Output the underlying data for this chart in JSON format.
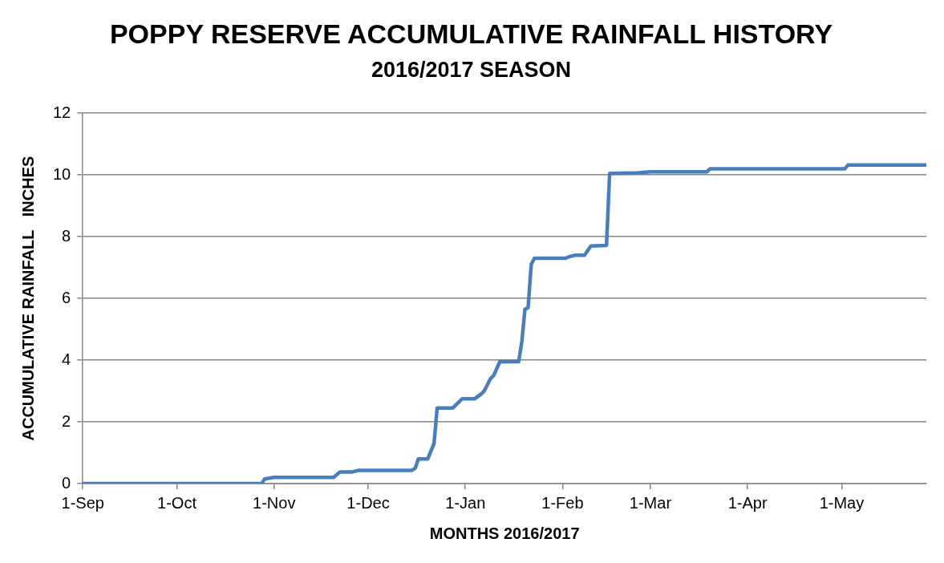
{
  "chart_data": {
    "type": "line",
    "title": "POPPY RESERVE ACCUMULATIVE RAINFALL HISTORY",
    "subtitle": "2016/2017 SEASON",
    "xlabel": "MONTHS 2016/2017",
    "ylabel": "ACCUMULATIVE RAINFALL   INCHES",
    "x": [
      "2016-09-01",
      "2016-10-28",
      "2016-10-29",
      "2016-11-01",
      "2016-11-20",
      "2016-11-22",
      "2016-11-26",
      "2016-11-28",
      "2016-12-15",
      "2016-12-16",
      "2016-12-17",
      "2016-12-20",
      "2016-12-22",
      "2016-12-23",
      "2016-12-28",
      "2016-12-31",
      "2017-01-04",
      "2017-01-06",
      "2017-01-07",
      "2017-01-09",
      "2017-01-10",
      "2017-01-12",
      "2017-01-18",
      "2017-01-19",
      "2017-01-20",
      "2017-01-21",
      "2017-01-22",
      "2017-01-23",
      "2017-02-02",
      "2017-02-03",
      "2017-02-05",
      "2017-02-08",
      "2017-02-10",
      "2017-02-15",
      "2017-02-16",
      "2017-02-25",
      "2017-03-01",
      "2017-03-19",
      "2017-03-20",
      "2017-05-02",
      "2017-05-03",
      "2017-05-28"
    ],
    "series": [
      {
        "color": "#4a7ebb",
        "values": [
          0,
          0,
          0.15,
          0.2,
          0.2,
          0.38,
          0.38,
          0.43,
          0.43,
          0.5,
          0.8,
          0.8,
          1.3,
          2.45,
          2.45,
          2.75,
          2.75,
          2.9,
          3.0,
          3.4,
          3.5,
          3.95,
          3.95,
          4.6,
          5.65,
          5.7,
          7.1,
          7.3,
          7.3,
          7.35,
          7.4,
          7.4,
          7.7,
          7.72,
          10.05,
          10.07,
          10.1,
          10.1,
          10.2,
          10.2,
          10.32,
          10.32
        ]
      }
    ],
    "xlim": [
      "2016-09-01",
      "2017-05-28"
    ],
    "xticks": [
      {
        "value": "2016-09-01",
        "label": "1-Sep"
      },
      {
        "value": "2016-10-01",
        "label": "1-Oct"
      },
      {
        "value": "2016-11-01",
        "label": "1-Nov"
      },
      {
        "value": "2016-12-01",
        "label": "1-Dec"
      },
      {
        "value": "2017-01-01",
        "label": "1-Jan"
      },
      {
        "value": "2017-02-01",
        "label": "1-Feb"
      },
      {
        "value": "2017-03-01",
        "label": "1-Mar"
      },
      {
        "value": "2017-04-01",
        "label": "1-Apr"
      },
      {
        "value": "2017-05-01",
        "label": "1-May"
      }
    ],
    "ylim": [
      0,
      12
    ],
    "yticks": [
      0,
      2,
      4,
      6,
      8,
      10,
      12
    ],
    "grid": "y",
    "legend": false,
    "marker": "none",
    "line_style": "solid"
  }
}
